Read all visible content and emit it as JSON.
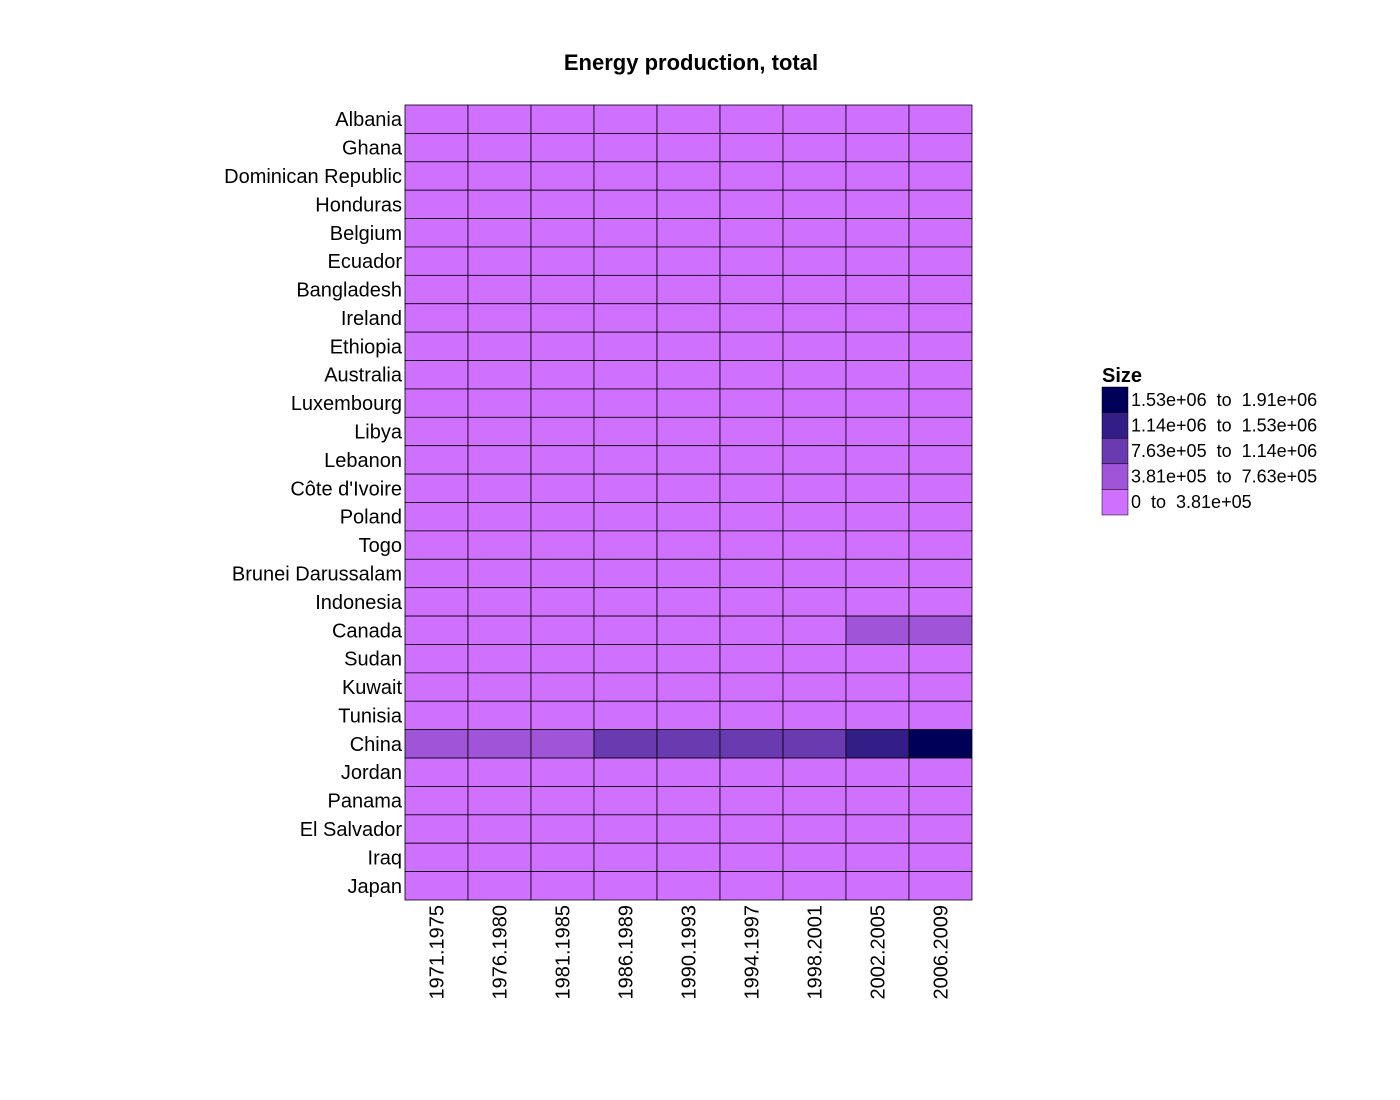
{
  "chart_data": {
    "type": "heatmap",
    "title": "Energy production, total",
    "xlabel": "",
    "ylabel": "",
    "rows": [
      "Albania",
      "Ghana",
      "Dominican Republic",
      "Honduras",
      "Belgium",
      "Ecuador",
      "Bangladesh",
      "Ireland",
      "Ethiopia",
      "Australia",
      "Luxembourg",
      "Libya",
      "Lebanon",
      "Côte d'Ivoire",
      "Poland",
      "Togo",
      "Brunei Darussalam",
      "Indonesia",
      "Canada",
      "Sudan",
      "Kuwait",
      "Tunisia",
      "China",
      "Jordan",
      "Panama",
      "El Salvador",
      "Iraq",
      "Japan"
    ],
    "columns": [
      "1971.1975",
      "1976.1980",
      "1981.1985",
      "1986.1989",
      "1990.1993",
      "1994.1997",
      "1998.2001",
      "2002.2005",
      "2006.2009"
    ],
    "bin_values": [
      [
        0,
        0,
        0,
        0,
        0,
        0,
        0,
        0,
        0
      ],
      [
        0,
        0,
        0,
        0,
        0,
        0,
        0,
        0,
        0
      ],
      [
        0,
        0,
        0,
        0,
        0,
        0,
        0,
        0,
        0
      ],
      [
        0,
        0,
        0,
        0,
        0,
        0,
        0,
        0,
        0
      ],
      [
        0,
        0,
        0,
        0,
        0,
        0,
        0,
        0,
        0
      ],
      [
        0,
        0,
        0,
        0,
        0,
        0,
        0,
        0,
        0
      ],
      [
        0,
        0,
        0,
        0,
        0,
        0,
        0,
        0,
        0
      ],
      [
        0,
        0,
        0,
        0,
        0,
        0,
        0,
        0,
        0
      ],
      [
        0,
        0,
        0,
        0,
        0,
        0,
        0,
        0,
        0
      ],
      [
        0,
        0,
        0,
        0,
        0,
        0,
        0,
        0,
        0
      ],
      [
        0,
        0,
        0,
        0,
        0,
        0,
        0,
        0,
        0
      ],
      [
        0,
        0,
        0,
        0,
        0,
        0,
        0,
        0,
        0
      ],
      [
        0,
        0,
        0,
        0,
        0,
        0,
        0,
        0,
        0
      ],
      [
        0,
        0,
        0,
        0,
        0,
        0,
        0,
        0,
        0
      ],
      [
        0,
        0,
        0,
        0,
        0,
        0,
        0,
        0,
        0
      ],
      [
        0,
        0,
        0,
        0,
        0,
        0,
        0,
        0,
        0
      ],
      [
        0,
        0,
        0,
        0,
        0,
        0,
        0,
        0,
        0
      ],
      [
        0,
        0,
        0,
        0,
        0,
        0,
        0,
        0,
        0
      ],
      [
        0,
        0,
        0,
        0,
        0,
        0,
        0,
        1,
        1
      ],
      [
        0,
        0,
        0,
        0,
        0,
        0,
        0,
        0,
        0
      ],
      [
        0,
        0,
        0,
        0,
        0,
        0,
        0,
        0,
        0
      ],
      [
        0,
        0,
        0,
        0,
        0,
        0,
        0,
        0,
        0
      ],
      [
        1,
        1,
        1,
        2,
        2,
        2,
        2,
        3,
        4
      ],
      [
        0,
        0,
        0,
        0,
        0,
        0,
        0,
        0,
        0
      ],
      [
        0,
        0,
        0,
        0,
        0,
        0,
        0,
        0,
        0
      ],
      [
        0,
        0,
        0,
        0,
        0,
        0,
        0,
        0,
        0
      ],
      [
        0,
        0,
        0,
        0,
        0,
        0,
        0,
        0,
        0
      ],
      [
        0,
        0,
        0,
        0,
        0,
        0,
        0,
        0,
        0
      ]
    ],
    "legend": {
      "title": "Size",
      "position": "right",
      "bins": [
        {
          "label": "0  to  3.81e+05",
          "color": "#D070FF"
        },
        {
          "label": "3.81e+05  to  7.63e+05",
          "color": "#A055D9"
        },
        {
          "label": "7.63e+05  to  1.14e+06",
          "color": "#6A3AB0"
        },
        {
          "label": "1.14e+06  to  1.53e+06",
          "color": "#331E88"
        },
        {
          "label": "1.53e+06  to  1.91e+06",
          "color": "#000058"
        }
      ]
    },
    "grid": true
  }
}
